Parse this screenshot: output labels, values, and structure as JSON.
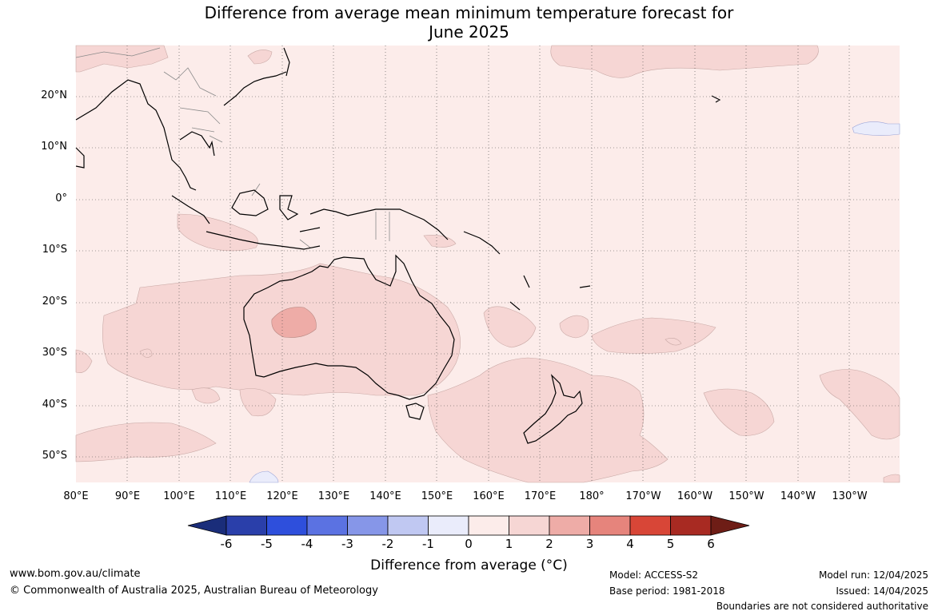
{
  "title_line1": "Difference from average mean minimum temperature forecast for",
  "title_line2": "June 2025",
  "lat_labels": [
    "20°N",
    "10°N",
    "0°",
    "10°S",
    "20°S",
    "30°S",
    "40°S",
    "50°S"
  ],
  "lon_labels": [
    "80°E",
    "90°E",
    "100°E",
    "110°E",
    "120°E",
    "130°E",
    "140°E",
    "150°E",
    "160°E",
    "170°E",
    "180°",
    "170°W",
    "160°W",
    "150°W",
    "140°W",
    "130°W"
  ],
  "colorbar": {
    "title": "Difference from average (°C)",
    "tick_labels": [
      "-6",
      "-5",
      "-4",
      "-3",
      "-2",
      "-1",
      "0",
      "1",
      "2",
      "3",
      "4",
      "5",
      "6"
    ],
    "colors": [
      "#1a2d7a",
      "#2a3faa",
      "#2e4fdc",
      "#5b72e2",
      "#8696e8",
      "#c0c8f2",
      "#eaecfb",
      "#fcecea",
      "#f6d6d4",
      "#eeaca7",
      "#e6847c",
      "#d84637",
      "#a82a22",
      "#6e1d16"
    ]
  },
  "footer": {
    "website": "www.bom.gov.au/climate",
    "copyright": "© Commonwealth of Australia 2025, Australian Bureau of Meteorology",
    "model": "Model: ACCESS-S2",
    "base_period": "Base period: 1981-2018",
    "model_run": "Model run: 12/04/2025",
    "issued": "Issued: 14/04/2025",
    "disclaimer": "Boundaries are not considered authoritative"
  }
}
